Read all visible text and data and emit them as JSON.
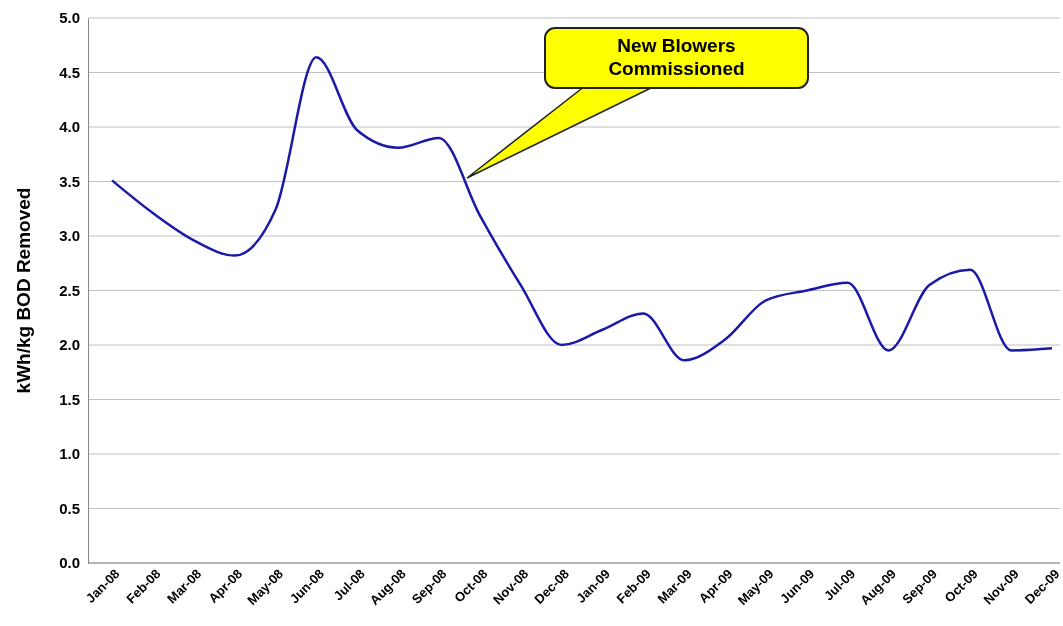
{
  "chart_data": {
    "type": "line",
    "ylabel": "kWh/kg BOD Removed",
    "categories": [
      "Jan-08",
      "Feb-08",
      "Mar-08",
      "Apr-08",
      "May-08",
      "Jun-08",
      "Jul-08",
      "Aug-08",
      "Sep-08",
      "Oct-08",
      "Nov-08",
      "Dec-08",
      "Jan-09",
      "Feb-09",
      "Mar-09",
      "Apr-09",
      "May-09",
      "Jun-09",
      "Jul-09",
      "Aug-09",
      "Sep-09",
      "Oct-09",
      "Nov-09",
      "Dec-09"
    ],
    "series": [
      {
        "color": "#1a1aa6",
        "values": [
          3.51,
          3.21,
          2.96,
          2.82,
          3.24,
          4.64,
          3.97,
          3.81,
          3.9,
          3.19,
          2.55,
          2.0,
          2.14,
          2.29,
          1.86,
          2.05,
          2.41,
          2.5,
          2.57,
          1.95,
          2.55,
          2.69,
          1.95,
          1.97
        ]
      }
    ],
    "ylim": [
      0,
      5
    ],
    "yticks": [
      {
        "value": 0,
        "label": "0.0"
      },
      {
        "value": 0.5,
        "label": "0.5"
      },
      {
        "value": 1,
        "label": "1.0"
      },
      {
        "value": 1.5,
        "label": "1.5"
      },
      {
        "value": 2,
        "label": "2.0"
      },
      {
        "value": 2.5,
        "label": "2.5"
      },
      {
        "value": 3,
        "label": "3.0"
      },
      {
        "value": 3.5,
        "label": "3.5"
      },
      {
        "value": 4,
        "label": "4.0"
      },
      {
        "value": 4.5,
        "label": "4.5"
      },
      {
        "value": 5,
        "label": "5.0"
      }
    ],
    "grid": "y",
    "marker": "none",
    "line_style": "solid",
    "annotations": [
      "New Blowers\nCommissioned"
    ]
  }
}
